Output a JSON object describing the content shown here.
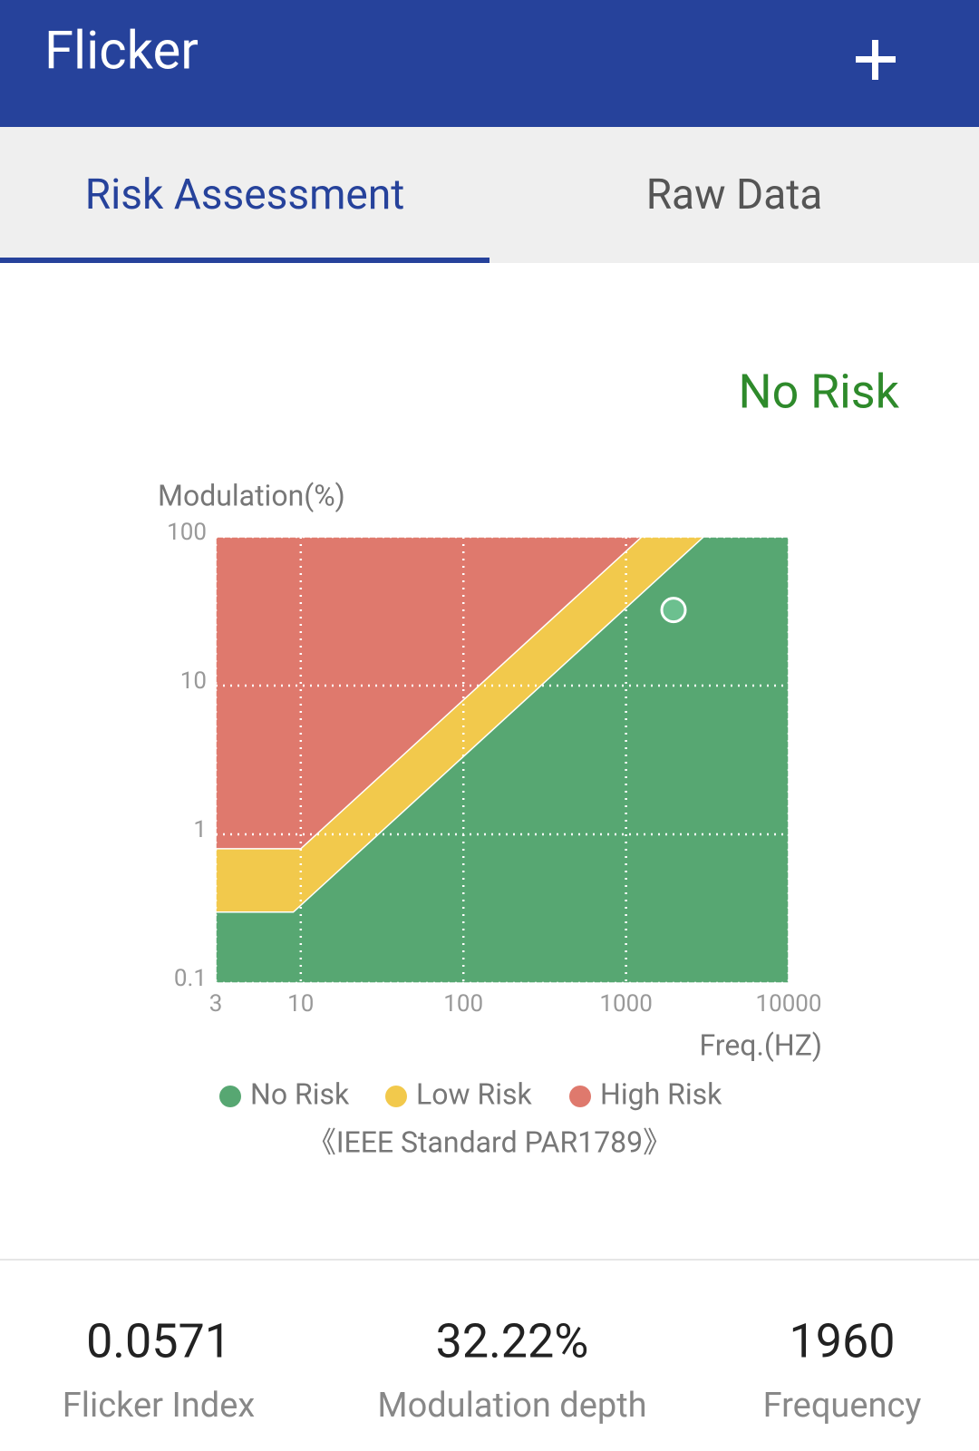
{
  "header": {
    "title": "Flicker"
  },
  "tabs": [
    "Risk Assessment",
    "Raw Data"
  ],
  "status": "No Risk",
  "chart_data": {
    "type": "area",
    "y_label": "Modulation(%)",
    "x_label": "Freq.(HZ)",
    "x_log": true,
    "y_log": true,
    "xlim": [
      3,
      10000
    ],
    "ylim": [
      0.1,
      100
    ],
    "xticks": [
      3,
      10,
      100,
      1000,
      10000
    ],
    "yticks": [
      0.1,
      1,
      10,
      100
    ],
    "grid": true,
    "series": [
      {
        "name": "No Risk",
        "color": "#57a772",
        "x": [
          3,
          9,
          3000,
          10000
        ],
        "values": [
          0.3,
          0.3,
          100,
          100
        ]
      },
      {
        "name": "Low Risk",
        "color": "#f2c94c",
        "x": [
          3,
          10,
          1250,
          10000
        ],
        "values": [
          0.8,
          0.8,
          100,
          100
        ]
      },
      {
        "name": "High Risk",
        "color": "#df796d",
        "x": [
          3,
          10000
        ],
        "values": [
          100,
          100
        ]
      }
    ],
    "note": "《IEEE Standard PAR1789》"
  },
  "metrics": {
    "values": [
      0.0571,
      32.22,
      1960
    ],
    "value_labels": [
      "0.0571",
      "32.22%",
      "1960"
    ],
    "names": [
      "Flicker Index",
      "Modulation depth",
      "Frequency"
    ]
  }
}
